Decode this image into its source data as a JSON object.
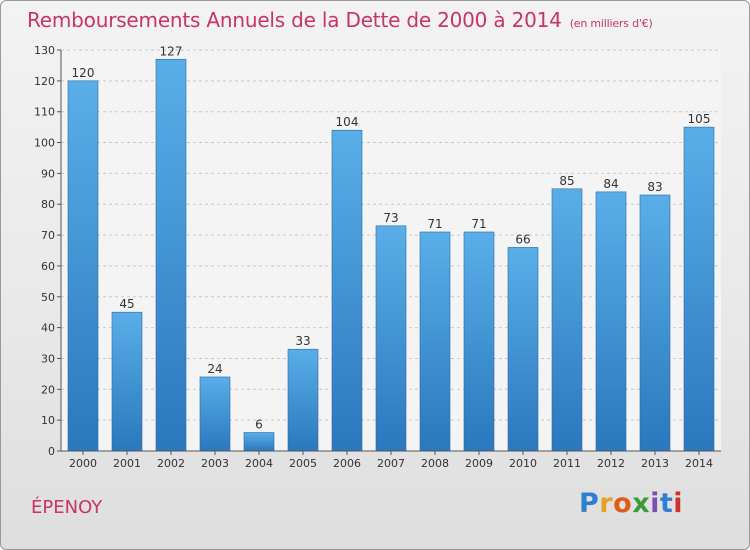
{
  "chart_data": {
    "type": "bar",
    "title": "Remboursements Annuels de la Dette de 2000 à 2014",
    "subtitle": "(en milliers d'€)",
    "categories": [
      "2000",
      "2001",
      "2002",
      "2003",
      "2004",
      "2005",
      "2006",
      "2007",
      "2008",
      "2009",
      "2010",
      "2011",
      "2012",
      "2013",
      "2014"
    ],
    "values": [
      120,
      45,
      127,
      24,
      6,
      33,
      104,
      73,
      71,
      71,
      66,
      85,
      84,
      83,
      105
    ],
    "ylim": [
      0,
      130
    ],
    "yticks": [
      0,
      10,
      20,
      30,
      40,
      50,
      60,
      70,
      80,
      90,
      100,
      110,
      120,
      130
    ],
    "xlabel": "",
    "ylabel": "",
    "grid": true,
    "bar_color": "#3d8fd4"
  },
  "footer": {
    "city": "ÉPENOY",
    "logo_text": "Proxiti",
    "logo_colors": [
      "#2f7fcf",
      "#e8a020",
      "#e05a1a",
      "#3d9a3a",
      "#7a4fb0",
      "#2f7fcf",
      "#d0302a"
    ]
  }
}
